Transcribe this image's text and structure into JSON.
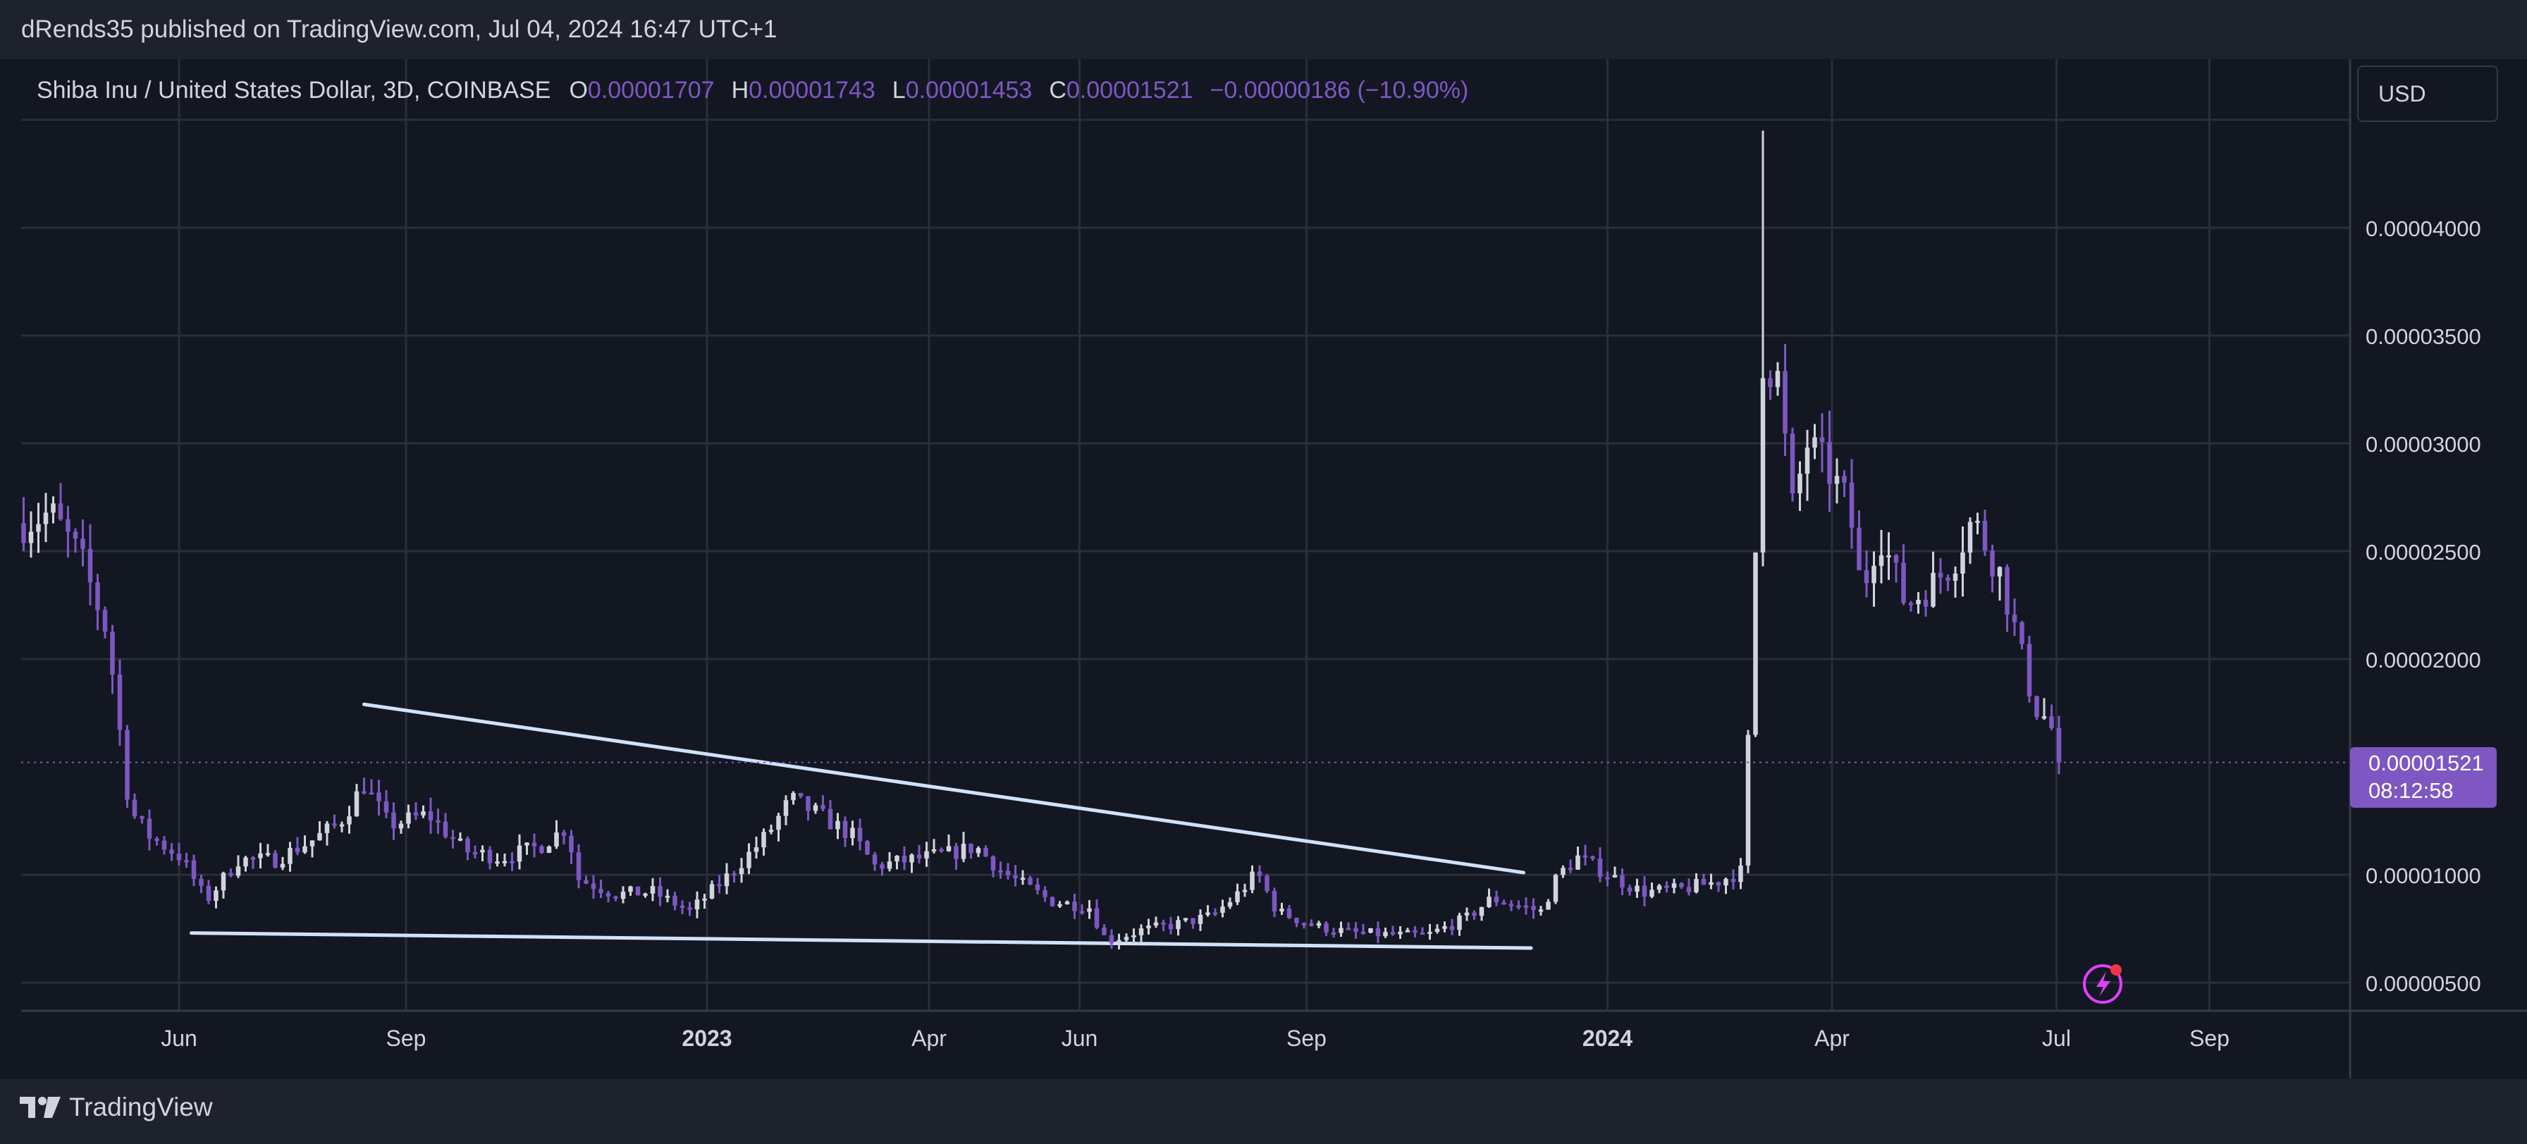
{
  "publisher_line": "dRends35 published on TradingView.com, Jul 04, 2024 16:47 UTC+1",
  "legend": {
    "symbol": "Shiba Inu / United States Dollar, 3D, COINBASE",
    "open_key": "O",
    "open_val": "0.00001707",
    "high_key": "H",
    "high_val": "0.00001743",
    "low_key": "L",
    "low_val": "0.00001453",
    "close_key": "C",
    "close_val": "0.00001521",
    "change": "−0.00000186 (−10.90%)"
  },
  "currency_button": "USD",
  "last_price_tag": {
    "price": "0.00001521",
    "countdown": "08:12:58"
  },
  "footer_brand": "TradingView",
  "colors": {
    "up": "#d1d4dc",
    "down": "#7e57c2",
    "trendline": "#cfe2f8",
    "accent": "#7e57c2",
    "alert": "#e040fb"
  },
  "icons": {
    "alert": "lightning-alert-icon",
    "logo": "tradingview-logo-icon"
  },
  "chart_data": {
    "type": "candlestick",
    "timeframe": "3D",
    "y_axis": {
      "scale": "linear",
      "range": [
        4e-06,
        4.5e-05
      ],
      "tick_values": [
        5e-06,
        1e-05,
        2e-05,
        2.5e-05,
        3e-05,
        3.5e-05,
        4e-05
      ],
      "tick_labels": [
        "0.00000500",
        "0.00001000",
        "0.00002000",
        "0.00002500",
        "0.00003000",
        "0.00003500",
        "0.00004000"
      ]
    },
    "x_axis": {
      "range": [
        "2022-03-29",
        "2024-10-28"
      ],
      "ticks": [
        {
          "date": "2022-06-01",
          "label": "Jun",
          "bold": false
        },
        {
          "date": "2022-09-01",
          "label": "Sep",
          "bold": false
        },
        {
          "date": "2023-01-01",
          "label": "2023",
          "bold": true
        },
        {
          "date": "2023-04-01",
          "label": "Apr",
          "bold": false
        },
        {
          "date": "2023-06-01",
          "label": "Jun",
          "bold": false
        },
        {
          "date": "2023-09-01",
          "label": "Sep",
          "bold": false
        },
        {
          "date": "2024-01-01",
          "label": "2024",
          "bold": true
        },
        {
          "date": "2024-04-01",
          "label": "Apr",
          "bold": false
        },
        {
          "date": "2024-07-01",
          "label": "Jul",
          "bold": false
        },
        {
          "date": "2024-09-01",
          "label": "Sep",
          "bold": false
        }
      ]
    },
    "price_path": [
      [
        "2022-03-30",
        2.63e-05
      ],
      [
        "2022-04-10",
        2.68e-05
      ],
      [
        "2022-04-22",
        2.47e-05
      ],
      [
        "2022-05-03",
        2.12e-05
      ],
      [
        "2022-05-12",
        1.3e-05
      ],
      [
        "2022-05-20",
        1.18e-05
      ],
      [
        "2022-06-02",
        1.08e-05
      ],
      [
        "2022-06-12",
        8.8e-06
      ],
      [
        "2022-06-25",
        1.07e-05
      ],
      [
        "2022-07-10",
        1.07e-05
      ],
      [
        "2022-07-25",
        1.16e-05
      ],
      [
        "2022-08-05",
        1.24e-05
      ],
      [
        "2022-08-15",
        1.42e-05
      ],
      [
        "2022-08-25",
        1.23e-05
      ],
      [
        "2022-09-10",
        1.28e-05
      ],
      [
        "2022-09-25",
        1.11e-05
      ],
      [
        "2022-10-10",
        1.08e-05
      ],
      [
        "2022-10-25",
        1.13e-05
      ],
      [
        "2022-11-05",
        1.22e-05
      ],
      [
        "2022-11-10",
        9.8e-06
      ],
      [
        "2022-11-25",
        9.1e-06
      ],
      [
        "2022-12-10",
        9.2e-06
      ],
      [
        "2022-12-25",
        8.3e-06
      ],
      [
        "2023-01-10",
        1e-05
      ],
      [
        "2023-01-25",
        1.18e-05
      ],
      [
        "2023-02-04",
        1.35e-05
      ],
      [
        "2023-02-15",
        1.28e-05
      ],
      [
        "2023-03-01",
        1.18e-05
      ],
      [
        "2023-03-10",
        1.04e-05
      ],
      [
        "2023-03-25",
        1.07e-05
      ],
      [
        "2023-04-10",
        1.1e-05
      ],
      [
        "2023-04-20",
        1.13e-05
      ],
      [
        "2023-05-01",
        1.01e-05
      ],
      [
        "2023-05-20",
        8.8e-06
      ],
      [
        "2023-06-05",
        8.5e-06
      ],
      [
        "2023-06-12",
        6.9e-06
      ],
      [
        "2023-06-25",
        7.4e-06
      ],
      [
        "2023-07-10",
        7.7e-06
      ],
      [
        "2023-07-25",
        8.1e-06
      ],
      [
        "2023-08-05",
        9.2e-06
      ],
      [
        "2023-08-12",
        1.01e-05
      ],
      [
        "2023-08-20",
        8.3e-06
      ],
      [
        "2023-09-05",
        7.6e-06
      ],
      [
        "2023-09-20",
        7.3e-06
      ],
      [
        "2023-10-10",
        7.2e-06
      ],
      [
        "2023-10-20",
        7.2e-06
      ],
      [
        "2023-11-05",
        8e-06
      ],
      [
        "2023-11-15",
        8.9e-06
      ],
      [
        "2023-11-25",
        8.6e-06
      ],
      [
        "2023-12-05",
        8.3e-06
      ],
      [
        "2023-12-12",
        1e-05
      ],
      [
        "2023-12-20",
        1.08e-05
      ],
      [
        "2024-01-03",
        9.9e-06
      ],
      [
        "2024-01-15",
        9.2e-06
      ],
      [
        "2024-01-30",
        9.3e-06
      ],
      [
        "2024-02-15",
        9.7e-06
      ],
      [
        "2024-02-25",
        1.02e-05
      ],
      [
        "2024-02-29",
        2.2e-05
      ],
      [
        "2024-03-04",
        3.4e-05
      ],
      [
        "2024-03-10",
        3.3e-05
      ],
      [
        "2024-03-16",
        2.7e-05
      ],
      [
        "2024-03-22",
        3e-05
      ],
      [
        "2024-04-01",
        2.85e-05
      ],
      [
        "2024-04-08",
        2.7e-05
      ],
      [
        "2024-04-13",
        2.3e-05
      ],
      [
        "2024-04-20",
        2.6e-05
      ],
      [
        "2024-05-01",
        2.25e-05
      ],
      [
        "2024-05-12",
        2.35e-05
      ],
      [
        "2024-05-20",
        2.45e-05
      ],
      [
        "2024-05-28",
        2.65e-05
      ],
      [
        "2024-06-08",
        2.4e-05
      ],
      [
        "2024-06-15",
        2.1e-05
      ],
      [
        "2024-06-22",
        1.78e-05
      ],
      [
        "2024-06-28",
        1.71e-05
      ],
      [
        "2024-07-04",
        1.521e-05
      ]
    ],
    "series_note": "roughly 95 three-day candles, body colors up #d1d4dc / down #7e57c2",
    "trendlines": [
      {
        "name": "upper",
        "from": [
          "2022-08-15",
          1.79e-05
        ],
        "to": [
          "2023-11-28",
          1.01e-05
        ]
      },
      {
        "name": "lower",
        "from": [
          "2022-06-06",
          7.3e-06
        ],
        "to": [
          "2023-12-01",
          6.6e-06
        ]
      }
    ],
    "last_price": 1.521e-05
  }
}
